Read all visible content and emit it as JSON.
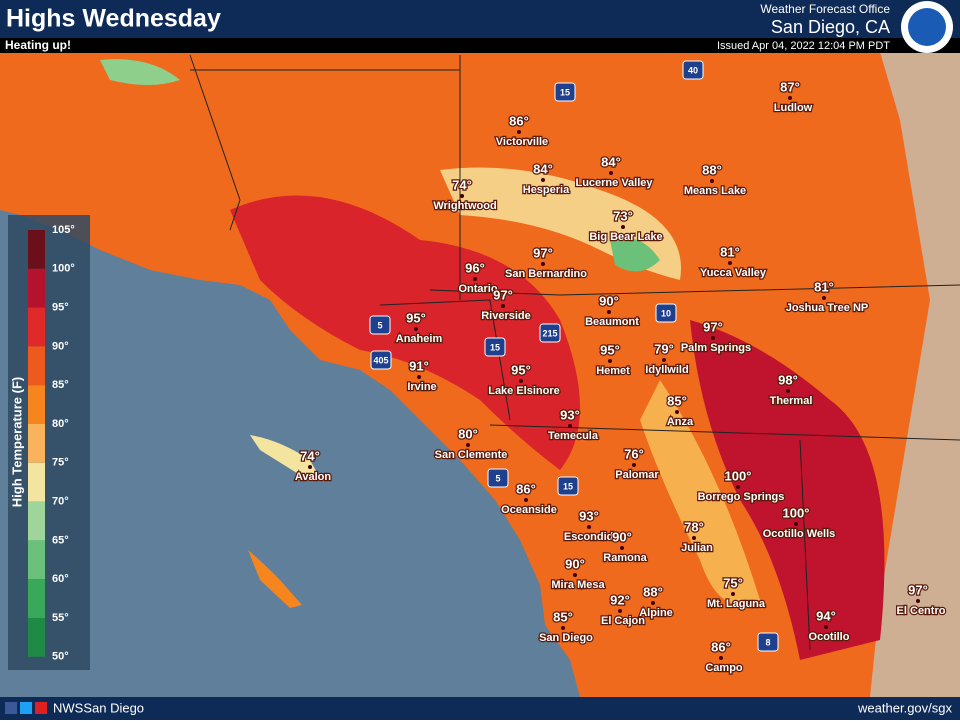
{
  "header": {
    "title": "Highs Wednesday",
    "subtitle": "Heating up!",
    "office_line1": "Weather Forecast Office",
    "office_line2": "San Diego, CA",
    "issued": "Issued Apr 04, 2022 12:04 PM PDT"
  },
  "legend": {
    "title": "High Temperature (F)",
    "labels": [
      "105°",
      "100°",
      "95°",
      "90°",
      "85°",
      "80°",
      "75°",
      "70°",
      "65°",
      "60°",
      "55°",
      "50°"
    ]
  },
  "cities": [
    {
      "temp": "86°",
      "name": "Victorville"
    },
    {
      "temp": "87°",
      "name": "Ludlow"
    },
    {
      "temp": "84°",
      "name": "Hesperia"
    },
    {
      "temp": "84°",
      "name": "Lucerne Valley"
    },
    {
      "temp": "88°",
      "name": "Means Lake"
    },
    {
      "temp": "74°",
      "name": "Wrightwood"
    },
    {
      "temp": "73°",
      "name": "Big Bear Lake"
    },
    {
      "temp": "81°",
      "name": "Yucca Valley"
    },
    {
      "temp": "97°",
      "name": "San Bernardino"
    },
    {
      "temp": "96°",
      "name": "Ontario"
    },
    {
      "temp": "81°",
      "name": "Joshua Tree NP"
    },
    {
      "temp": "97°",
      "name": "Riverside"
    },
    {
      "temp": "90°",
      "name": "Beaumont"
    },
    {
      "temp": "95°",
      "name": "Anaheim"
    },
    {
      "temp": "97°",
      "name": "Palm Springs"
    },
    {
      "temp": "95°",
      "name": "Hemet"
    },
    {
      "temp": "79°",
      "name": "Idyllwild"
    },
    {
      "temp": "91°",
      "name": "Irvine"
    },
    {
      "temp": "95°",
      "name": "Lake Elsinore"
    },
    {
      "temp": "98°",
      "name": "Thermal"
    },
    {
      "temp": "85°",
      "name": "Anza"
    },
    {
      "temp": "93°",
      "name": "Temecula"
    },
    {
      "temp": "80°",
      "name": "San Clemente"
    },
    {
      "temp": "74°",
      "name": "Avalon"
    },
    {
      "temp": "76°",
      "name": "Palomar"
    },
    {
      "temp": "100°",
      "name": "Borrego Springs"
    },
    {
      "temp": "86°",
      "name": "Oceanside"
    },
    {
      "temp": "100°",
      "name": "Ocotillo Wells"
    },
    {
      "temp": "93°",
      "name": "Escondido"
    },
    {
      "temp": "78°",
      "name": "Julian"
    },
    {
      "temp": "90°",
      "name": "Ramona"
    },
    {
      "temp": "90°",
      "name": "Mira Mesa"
    },
    {
      "temp": "97°",
      "name": "El Centro"
    },
    {
      "temp": "75°",
      "name": "Mt. Laguna"
    },
    {
      "temp": "88°",
      "name": "Alpine"
    },
    {
      "temp": "92°",
      "name": "El Cajon"
    },
    {
      "temp": "94°",
      "name": "Ocotillo"
    },
    {
      "temp": "85°",
      "name": "San Diego"
    },
    {
      "temp": "86°",
      "name": "Campo"
    }
  ],
  "highways": [
    "15",
    "40",
    "10",
    "215",
    "15",
    "5",
    "405",
    "5",
    "15",
    "8"
  ],
  "footer": {
    "social": "NWSSan Diego",
    "website": "weather.gov/sgx"
  }
}
